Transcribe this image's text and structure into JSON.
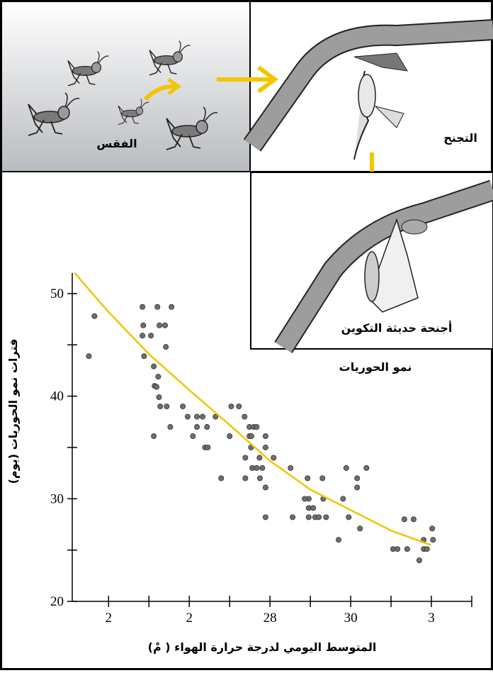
{
  "panels": {
    "hatching": "الفقس",
    "molting": "التجنح",
    "new_wings": "أجنحة حديثة التكوين",
    "nymph_growth": "نمو الحوريات"
  },
  "chart_data": {
    "type": "scatter",
    "y_label": "فترات نمو الحوريات (يوم)",
    "x_label": "المتوسط اليومي لدرجة حرارة الهواء ( مْ)",
    "xlim": [
      23.1,
      33
    ],
    "ylim": [
      20,
      52
    ],
    "xticks": [
      {
        "value": 24,
        "label": "2"
      },
      {
        "value": 26,
        "label": "2"
      },
      28,
      30,
      {
        "value": 32,
        "label": "3"
      }
    ],
    "xminorticks": [
      25,
      27,
      29,
      31,
      33
    ],
    "yticks": [
      20,
      30,
      40,
      50
    ],
    "yminorticks": [
      25,
      35,
      45
    ],
    "x": [
      23.51,
      23.65,
      24.84,
      24.86,
      24.84,
      24.88,
      25.05,
      25.21,
      25.26,
      25.4,
      25.42,
      25.56,
      25.12,
      25.14,
      25.19,
      25.23,
      25.25,
      25.28,
      25.44,
      25.12,
      25.53,
      25.84,
      26.09,
      26.19,
      25.96,
      26.19,
      26.33,
      26.44,
      26.39,
      26.46,
      26.65,
      26.79,
      27.04,
      27.0,
      27.23,
      27.37,
      27.39,
      27.49,
      27.49,
      27.53,
      27.56,
      27.6,
      27.54,
      27.39,
      27.67,
      27.74,
      27.67,
      27.75,
      27.81,
      27.89,
      27.89,
      27.89,
      27.89,
      28.09,
      28.51,
      28.56,
      28.96,
      28.93,
      28.86,
      28.96,
      29.07,
      28.96,
      29.12,
      29.21,
      29.39,
      29.3,
      29.32,
      29.7,
      29.81,
      29.89,
      29.95,
      30.16,
      30.16,
      30.23,
      30.39,
      31.05,
      31.16,
      31.33,
      31.4,
      31.56,
      31.7,
      31.81,
      31.81,
      31.89,
      32.02,
      32.04
    ],
    "series": [
      {
        "color": "#6e6e6e",
        "values": [
          43.9,
          47.8,
          48.7,
          46.9,
          45.9,
          43.9,
          45.9,
          48.7,
          46.9,
          46.9,
          44.8,
          48.7,
          42.9,
          41.0,
          40.9,
          41.9,
          39.9,
          39.0,
          39.0,
          36.1,
          37.0,
          39.0,
          36.1,
          37.0,
          38.0,
          38.0,
          38.0,
          37.0,
          35.0,
          35.0,
          38.0,
          32.0,
          39.0,
          36.1,
          39.0,
          38.0,
          34.0,
          37.0,
          36.1,
          35.0,
          33.0,
          37.0,
          36.1,
          32.0,
          37.0,
          34.0,
          33.0,
          32.0,
          33.0,
          36.1,
          35.0,
          31.1,
          28.2,
          34.0,
          33.0,
          28.2,
          30.0,
          32.0,
          30.0,
          29.1,
          29.1,
          28.2,
          28.2,
          28.2,
          28.2,
          32.0,
          30.0,
          26.0,
          30.0,
          33.0,
          28.2,
          32.0,
          31.1,
          27.1,
          33.0,
          25.1,
          25.1,
          28.0,
          25.1,
          28.0,
          24.0,
          26.0,
          25.1,
          25.1,
          27.1,
          26.0
        ]
      }
    ],
    "fit": {
      "color": "#f2c500",
      "x": [
        23.16,
        24,
        25,
        26,
        27,
        28,
        29,
        30,
        31,
        31.98
      ],
      "values": [
        52.0,
        48.2,
        44.1,
        40.6,
        37.2,
        33.7,
        30.9,
        28.9,
        26.9,
        25.5
      ]
    }
  }
}
